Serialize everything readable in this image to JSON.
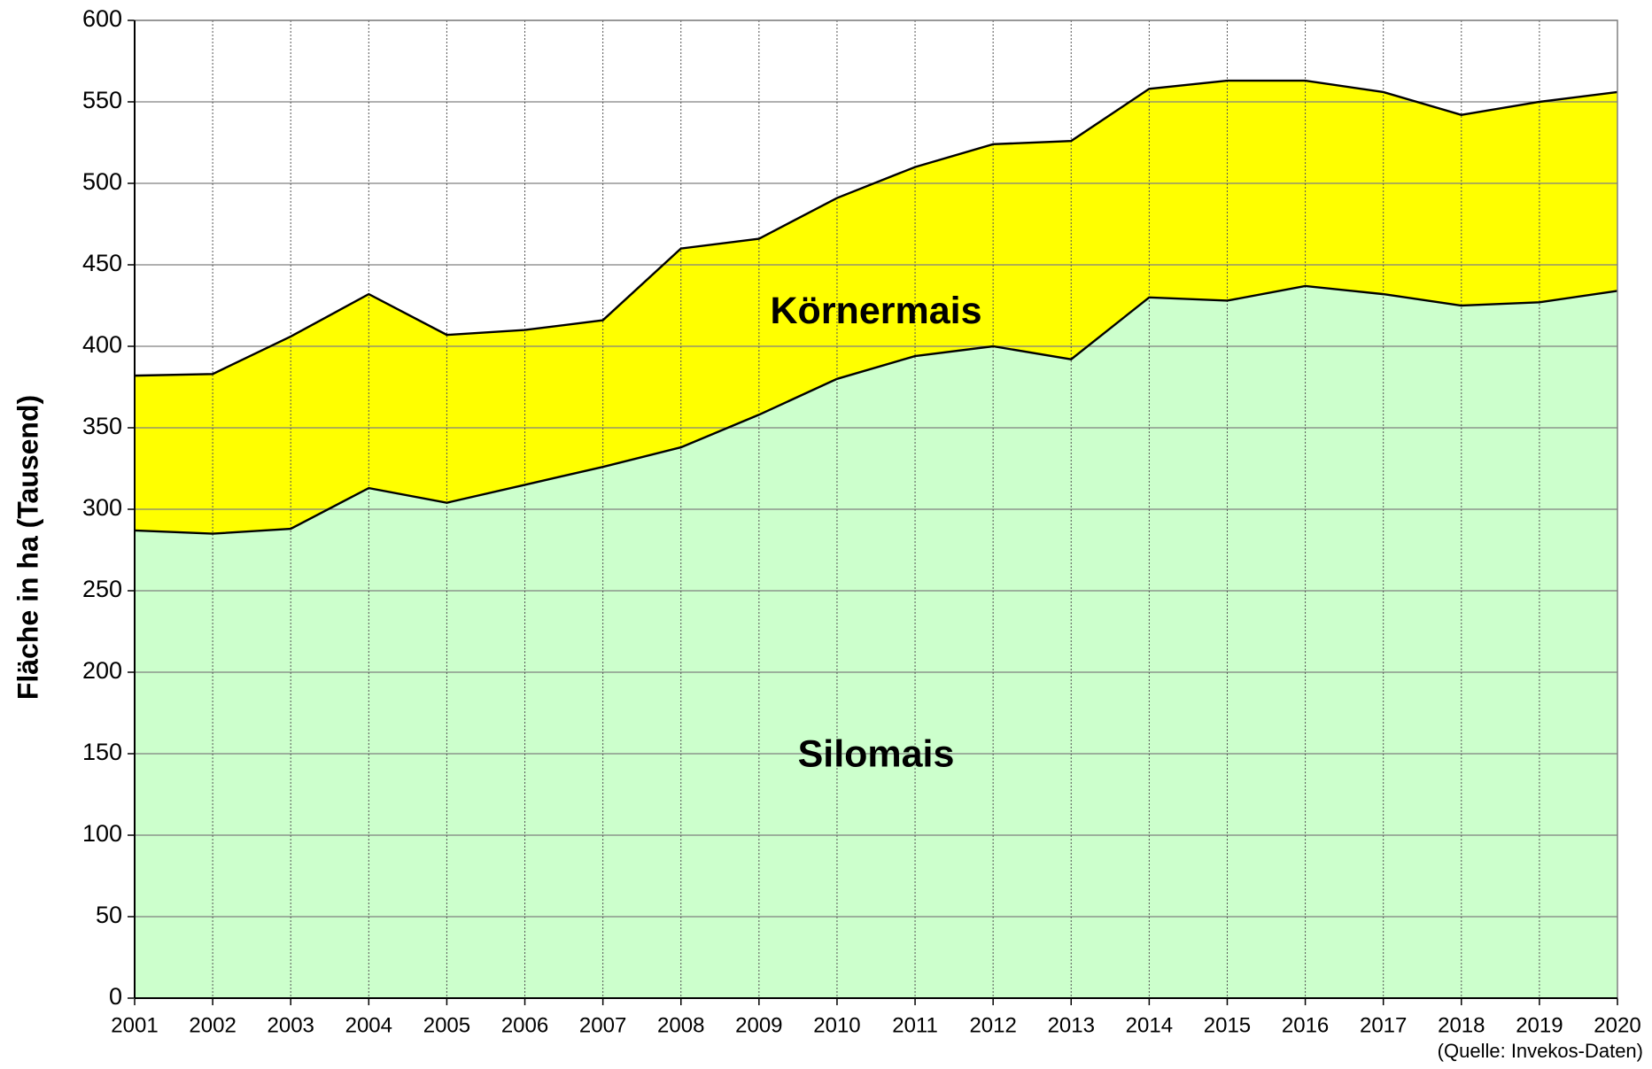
{
  "chart_data": {
    "type": "stacked-area",
    "y_label": "Fläche in ha (Tausend)",
    "note": "(Quelle: Invekos-Daten)",
    "categories": [
      "2001",
      "2002",
      "2003",
      "2004",
      "2005",
      "2006",
      "2007",
      "2008",
      "2009",
      "2010",
      "2011",
      "2012",
      "2013",
      "2014",
      "2015",
      "2016",
      "2017",
      "2018",
      "2019",
      "2020"
    ],
    "series": [
      {
        "name": "Silomais",
        "color": "#ccffcc",
        "values": [
          287,
          285,
          288,
          313,
          304,
          315,
          326,
          338,
          358,
          380,
          394,
          400,
          392,
          430,
          428,
          437,
          432,
          425,
          427,
          434
        ]
      },
      {
        "name": "Körnermais",
        "color": "#ffff00",
        "values": [
          95,
          98,
          118,
          119,
          103,
          95,
          90,
          122,
          108,
          111,
          116,
          124,
          134,
          128,
          135,
          126,
          124,
          117,
          123,
          122
        ]
      }
    ],
    "ylim": [
      0,
      600
    ],
    "yticks": [
      0,
      50,
      100,
      150,
      200,
      250,
      300,
      350,
      400,
      450,
      500,
      550,
      600
    ],
    "grid": true
  }
}
